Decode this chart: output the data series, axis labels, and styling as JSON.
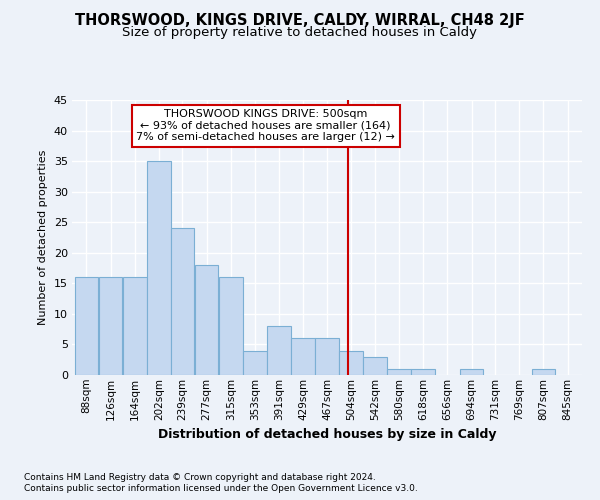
{
  "title": "THORSWOOD, KINGS DRIVE, CALDY, WIRRAL, CH48 2JF",
  "subtitle": "Size of property relative to detached houses in Caldy",
  "xlabel": "Distribution of detached houses by size in Caldy",
  "ylabel": "Number of detached properties",
  "bin_labels": [
    "88sqm",
    "126sqm",
    "164sqm",
    "202sqm",
    "239sqm",
    "277sqm",
    "315sqm",
    "353sqm",
    "391sqm",
    "429sqm",
    "467sqm",
    "504sqm",
    "542sqm",
    "580sqm",
    "618sqm",
    "656sqm",
    "694sqm",
    "731sqm",
    "769sqm",
    "807sqm",
    "845sqm"
  ],
  "bin_edges": [
    88,
    126,
    164,
    202,
    239,
    277,
    315,
    353,
    391,
    429,
    467,
    504,
    542,
    580,
    618,
    656,
    694,
    731,
    769,
    807,
    845
  ],
  "bar_heights": [
    16,
    16,
    16,
    35,
    24,
    18,
    16,
    4,
    8,
    6,
    6,
    4,
    3,
    1,
    1,
    0,
    1,
    0,
    0,
    1,
    0
  ],
  "bar_color": "#c5d8f0",
  "bar_edge_color": "#7bafd4",
  "property_line_x": 500,
  "property_line_color": "#cc0000",
  "annotation_title": "THORSWOOD KINGS DRIVE: 500sqm",
  "annotation_line1": "← 93% of detached houses are smaller (164)",
  "annotation_line2": "7% of semi-detached houses are larger (12) →",
  "ylim": [
    0,
    45
  ],
  "footnote1": "Contains HM Land Registry data © Crown copyright and database right 2024.",
  "footnote2": "Contains public sector information licensed under the Open Government Licence v3.0.",
  "background_color": "#edf2f9",
  "grid_color": "#ffffff",
  "title_fontsize": 10.5,
  "subtitle_fontsize": 9.5,
  "annotation_box_edge_color": "#cc0000",
  "xlabel_fontsize": 9,
  "ylabel_fontsize": 8,
  "tick_fontsize": 7.5,
  "ytick_fontsize": 8,
  "footnote_fontsize": 6.5
}
